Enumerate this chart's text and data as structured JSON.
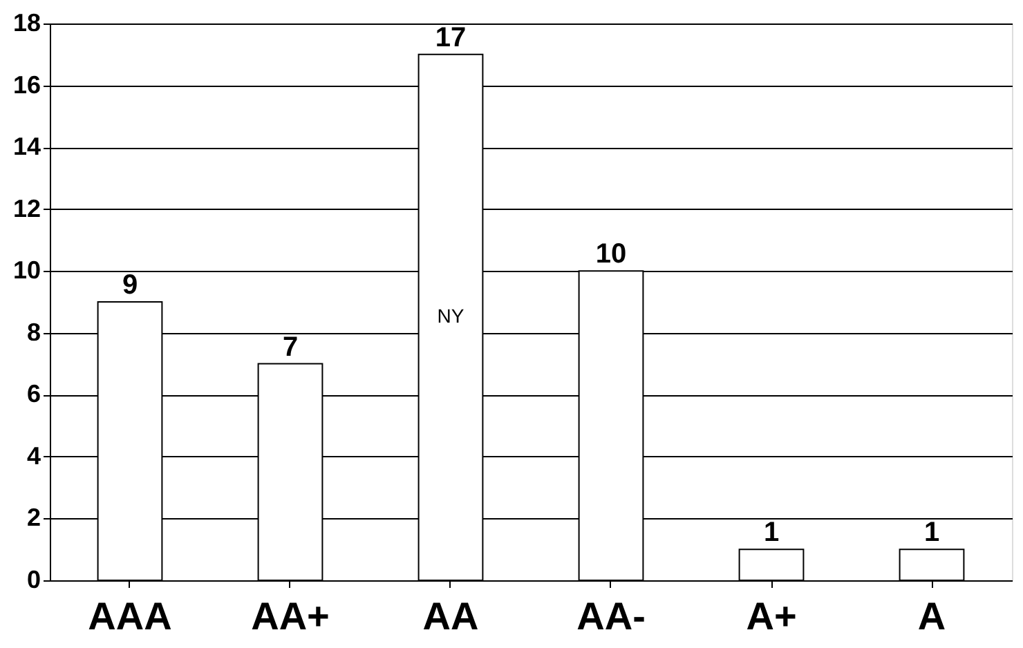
{
  "chart_data": {
    "type": "bar",
    "categories": [
      "AAA",
      "AA+",
      "AA",
      "AA-",
      "A+",
      "A"
    ],
    "values": [
      9,
      7,
      17,
      10,
      1,
      1
    ],
    "color": "#ffffff",
    "ylim": [
      0,
      18
    ],
    "yticks": [
      0,
      2,
      4,
      6,
      8,
      10,
      12,
      14,
      16,
      18
    ],
    "grid": "y",
    "data_labels": true,
    "annotations": [
      "NY"
    ]
  }
}
